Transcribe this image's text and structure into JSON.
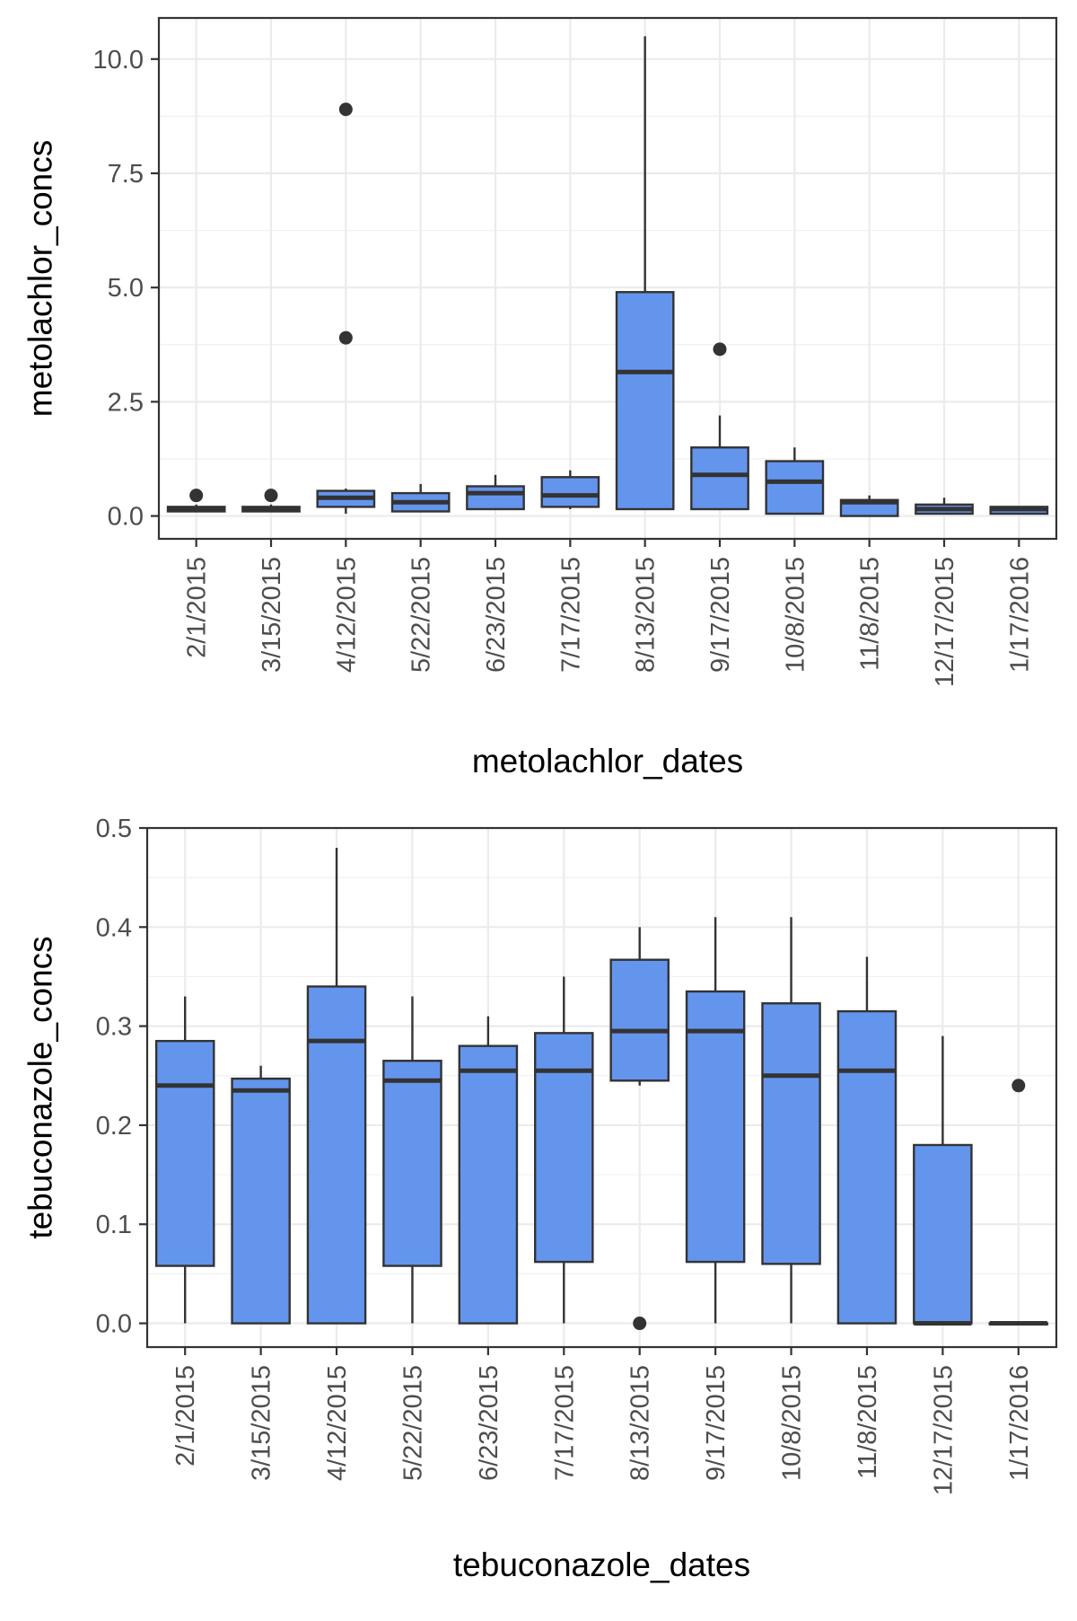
{
  "chart_data": [
    {
      "type": "box",
      "title": "",
      "xlabel": "metolachlor_dates",
      "ylabel": "metolachlor_concs",
      "categories": [
        "2/1/2015",
        "3/15/2015",
        "4/12/2015",
        "5/22/2015",
        "6/23/2015",
        "7/17/2015",
        "8/13/2015",
        "9/17/2015",
        "10/8/2015",
        "11/8/2015",
        "12/17/2015",
        "1/17/2016"
      ],
      "ylim": [
        -0.5,
        10.9
      ],
      "yticks": [
        0.0,
        2.5,
        5.0,
        7.5,
        10.0
      ],
      "ytick_labels": [
        "0.0",
        "2.5",
        "5.0",
        "7.5",
        "10.0"
      ],
      "grid": true,
      "fill_color": "#6495ED",
      "stroke_color": "#333333",
      "boxes": [
        {
          "whisker_low": 0.1,
          "q1": 0.1,
          "median": 0.15,
          "q3": 0.2,
          "whisker_high": 0.25,
          "outliers": [
            0.45
          ]
        },
        {
          "whisker_low": 0.1,
          "q1": 0.1,
          "median": 0.15,
          "q3": 0.2,
          "whisker_high": 0.25,
          "outliers": [
            0.45
          ]
        },
        {
          "whisker_low": 0.05,
          "q1": 0.2,
          "median": 0.4,
          "q3": 0.55,
          "whisker_high": 0.6,
          "outliers": [
            3.9,
            8.9
          ]
        },
        {
          "whisker_low": 0.1,
          "q1": 0.1,
          "median": 0.3,
          "q3": 0.5,
          "whisker_high": 0.7,
          "outliers": []
        },
        {
          "whisker_low": 0.15,
          "q1": 0.15,
          "median": 0.5,
          "q3": 0.65,
          "whisker_high": 0.9,
          "outliers": []
        },
        {
          "whisker_low": 0.15,
          "q1": 0.2,
          "median": 0.45,
          "q3": 0.85,
          "whisker_high": 1.0,
          "outliers": []
        },
        {
          "whisker_low": 0.15,
          "q1": 0.15,
          "median": 3.15,
          "q3": 4.9,
          "whisker_high": 10.5,
          "outliers": []
        },
        {
          "whisker_low": 0.15,
          "q1": 0.15,
          "median": 0.9,
          "q3": 1.5,
          "whisker_high": 2.2,
          "outliers": [
            3.65
          ]
        },
        {
          "whisker_low": 0.05,
          "q1": 0.05,
          "median": 0.75,
          "q3": 1.2,
          "whisker_high": 1.5,
          "outliers": []
        },
        {
          "whisker_low": 0.0,
          "q1": 0.0,
          "median": 0.3,
          "q3": 0.35,
          "whisker_high": 0.45,
          "outliers": []
        },
        {
          "whisker_low": 0.05,
          "q1": 0.05,
          "median": 0.15,
          "q3": 0.25,
          "whisker_high": 0.4,
          "outliers": []
        },
        {
          "whisker_low": 0.05,
          "q1": 0.05,
          "median": 0.15,
          "q3": 0.2,
          "whisker_high": 0.2,
          "outliers": []
        }
      ]
    },
    {
      "type": "box",
      "title": "",
      "xlabel": "tebuconazole_dates",
      "ylabel": "tebuconazole_concs",
      "categories": [
        "2/1/2015",
        "3/15/2015",
        "4/12/2015",
        "5/22/2015",
        "6/23/2015",
        "7/17/2015",
        "8/13/2015",
        "9/17/2015",
        "10/8/2015",
        "11/8/2015",
        "12/17/2015",
        "1/17/2016"
      ],
      "ylim": [
        -0.024,
        0.5
      ],
      "yticks": [
        0.0,
        0.1,
        0.2,
        0.3,
        0.4,
        0.5
      ],
      "ytick_labels": [
        "0.0",
        "0.1",
        "0.2",
        "0.3",
        "0.4",
        "0.5"
      ],
      "grid": true,
      "fill_color": "#6495ED",
      "stroke_color": "#333333",
      "boxes": [
        {
          "whisker_low": 0.0,
          "q1": 0.058,
          "median": 0.24,
          "q3": 0.285,
          "whisker_high": 0.33,
          "outliers": []
        },
        {
          "whisker_low": 0.0,
          "q1": 0.0,
          "median": 0.235,
          "q3": 0.247,
          "whisker_high": 0.26,
          "outliers": []
        },
        {
          "whisker_low": 0.0,
          "q1": 0.0,
          "median": 0.285,
          "q3": 0.34,
          "whisker_high": 0.48,
          "outliers": []
        },
        {
          "whisker_low": 0.0,
          "q1": 0.058,
          "median": 0.245,
          "q3": 0.265,
          "whisker_high": 0.33,
          "outliers": []
        },
        {
          "whisker_low": 0.0,
          "q1": 0.0,
          "median": 0.255,
          "q3": 0.28,
          "whisker_high": 0.31,
          "outliers": []
        },
        {
          "whisker_low": 0.0,
          "q1": 0.062,
          "median": 0.255,
          "q3": 0.293,
          "whisker_high": 0.35,
          "outliers": []
        },
        {
          "whisker_low": 0.24,
          "q1": 0.245,
          "median": 0.295,
          "q3": 0.367,
          "whisker_high": 0.4,
          "outliers": [
            0.0
          ]
        },
        {
          "whisker_low": 0.0,
          "q1": 0.062,
          "median": 0.295,
          "q3": 0.335,
          "whisker_high": 0.41,
          "outliers": []
        },
        {
          "whisker_low": 0.0,
          "q1": 0.06,
          "median": 0.25,
          "q3": 0.323,
          "whisker_high": 0.41,
          "outliers": []
        },
        {
          "whisker_low": 0.0,
          "q1": 0.0,
          "median": 0.255,
          "q3": 0.315,
          "whisker_high": 0.37,
          "outliers": []
        },
        {
          "whisker_low": 0.0,
          "q1": 0.0,
          "median": 0.0,
          "q3": 0.18,
          "whisker_high": 0.29,
          "outliers": []
        },
        {
          "whisker_low": 0.0,
          "q1": 0.0,
          "median": 0.0,
          "q3": 0.0,
          "whisker_high": 0.0,
          "outliers": [
            0.24
          ]
        }
      ]
    }
  ]
}
